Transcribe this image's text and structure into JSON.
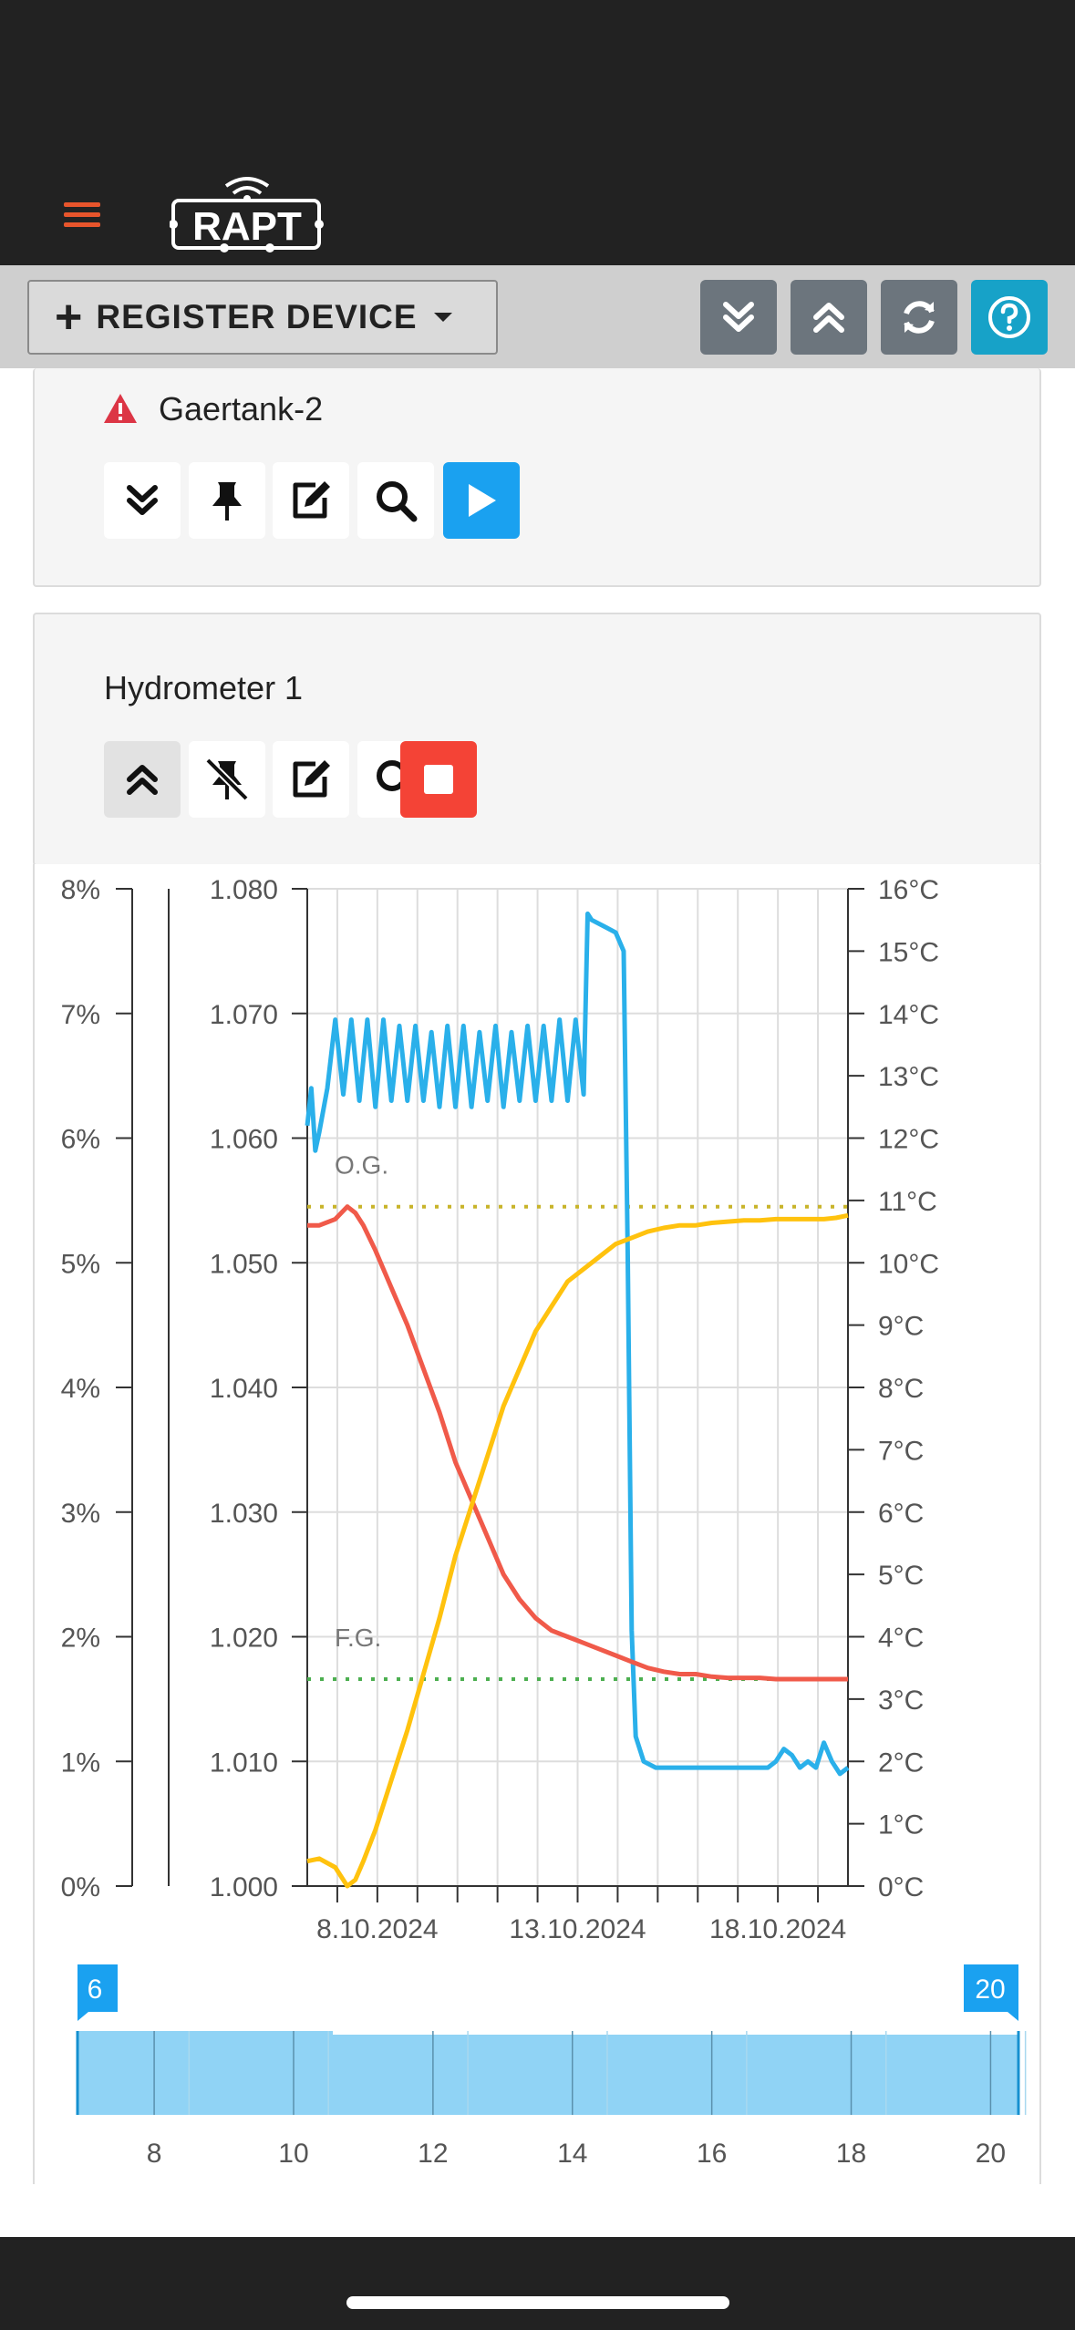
{
  "header": {
    "logo_text": "RAPT"
  },
  "toolbar": {
    "register_label": "REGISTER DEVICE"
  },
  "devices": [
    {
      "name": "Gaertank-2",
      "status": "warning"
    },
    {
      "name": "Hydrometer 1"
    }
  ],
  "chart_data": {
    "type": "line",
    "x_ticks": [
      "8.10.2024",
      "13.10.2024",
      "18.10.2024"
    ],
    "x_range_days": [
      7.1,
      20.6
    ],
    "left_axis_abv": {
      "ticks": [
        "0%",
        "1%",
        "2%",
        "3%",
        "4%",
        "5%",
        "6%",
        "7%",
        "8%"
      ],
      "range": [
        0,
        8
      ]
    },
    "left_axis_gravity": {
      "ticks": [
        "1.000",
        "1.010",
        "1.020",
        "1.030",
        "1.040",
        "1.050",
        "1.060",
        "1.070",
        "1.080"
      ],
      "range": [
        1.0,
        1.08
      ]
    },
    "right_axis_temp": {
      "ticks": [
        "0°C",
        "1°C",
        "2°C",
        "3°C",
        "4°C",
        "5°C",
        "6°C",
        "7°C",
        "8°C",
        "9°C",
        "10°C",
        "11°C",
        "12°C",
        "13°C",
        "14°C",
        "15°C",
        "16°C"
      ],
      "range": [
        0,
        16
      ]
    },
    "annotations": [
      {
        "label": "O.G.",
        "value": 1.0545,
        "axis": "gravity",
        "color": "#c8b42a"
      },
      {
        "label": "F.G.",
        "value": 1.0166,
        "axis": "gravity",
        "color": "#4caf50"
      }
    ],
    "series": [
      {
        "axis": "temp",
        "color": "#2ab0ea",
        "x": [
          7.1,
          7.2,
          7.3,
          7.4,
          7.6,
          7.8,
          8.0,
          8.2,
          8.4,
          8.6,
          8.8,
          9.0,
          9.2,
          9.4,
          9.6,
          9.8,
          10.0,
          10.2,
          10.4,
          10.6,
          10.8,
          11.0,
          11.2,
          11.4,
          11.6,
          11.8,
          12.0,
          12.2,
          12.4,
          12.6,
          12.8,
          13.0,
          13.2,
          13.4,
          13.6,
          13.8,
          14.0,
          14.1,
          14.2,
          14.5,
          14.8,
          15.0,
          15.1,
          15.2,
          15.3,
          15.5,
          15.8,
          16.2,
          16.6,
          17.0,
          17.2,
          17.4,
          17.6,
          17.8,
          18.0,
          18.2,
          18.4,
          18.6,
          18.8,
          19.0,
          19.2,
          19.4,
          19.6,
          19.8,
          20.0,
          20.2,
          20.4,
          20.6
        ],
        "y": [
          12.2,
          12.8,
          11.8,
          12.1,
          12.8,
          13.9,
          12.7,
          13.9,
          12.6,
          13.9,
          12.5,
          13.9,
          12.6,
          13.8,
          12.6,
          13.8,
          12.6,
          13.7,
          12.5,
          13.8,
          12.5,
          13.8,
          12.5,
          13.7,
          12.6,
          13.8,
          12.5,
          13.7,
          12.6,
          13.8,
          12.6,
          13.8,
          12.6,
          13.9,
          12.6,
          13.9,
          12.7,
          15.6,
          15.5,
          15.4,
          15.3,
          15.0,
          10.2,
          4.1,
          2.4,
          2.0,
          1.9,
          1.9,
          1.9,
          1.9,
          1.9,
          1.9,
          1.9,
          1.9,
          1.9,
          1.9,
          1.9,
          1.9,
          2.0,
          2.2,
          2.1,
          1.9,
          2.0,
          1.9,
          2.3,
          2.0,
          1.8,
          1.9
        ]
      },
      {
        "axis": "gravity",
        "color": "#f05a4a",
        "x": [
          7.1,
          7.4,
          7.8,
          8.1,
          8.3,
          8.5,
          8.8,
          9.2,
          9.6,
          10.0,
          10.4,
          10.8,
          11.2,
          11.6,
          12.0,
          12.4,
          12.8,
          13.2,
          13.6,
          14.0,
          14.4,
          14.8,
          15.2,
          15.6,
          16.0,
          16.4,
          16.8,
          17.2,
          17.6,
          18.0,
          18.4,
          18.8,
          19.2,
          19.6,
          20.0,
          20.3,
          20.6
        ],
        "y": [
          1.053,
          1.053,
          1.0535,
          1.0545,
          1.054,
          1.053,
          1.051,
          1.048,
          1.045,
          1.0415,
          1.038,
          1.034,
          1.031,
          1.028,
          1.025,
          1.023,
          1.0215,
          1.0205,
          1.02,
          1.0195,
          1.019,
          1.0185,
          1.018,
          1.0175,
          1.0172,
          1.017,
          1.017,
          1.0168,
          1.0167,
          1.0167,
          1.0167,
          1.0166,
          1.0166,
          1.0166,
          1.0166,
          1.0166,
          1.0166
        ]
      },
      {
        "axis": "abv",
        "color": "#ffc20e",
        "x": [
          7.1,
          7.4,
          7.8,
          8.1,
          8.3,
          8.5,
          8.8,
          9.2,
          9.6,
          10.0,
          10.4,
          10.8,
          11.2,
          11.6,
          12.0,
          12.4,
          12.8,
          13.2,
          13.6,
          14.0,
          14.4,
          14.8,
          15.2,
          15.6,
          16.0,
          16.4,
          16.8,
          17.2,
          17.6,
          18.0,
          18.4,
          18.8,
          19.2,
          19.6,
          20.0,
          20.3,
          20.6
        ],
        "y": [
          0.2,
          0.22,
          0.15,
          0.0,
          0.05,
          0.2,
          0.45,
          0.85,
          1.25,
          1.7,
          2.15,
          2.65,
          3.05,
          3.45,
          3.85,
          4.15,
          4.45,
          4.65,
          4.85,
          4.95,
          5.05,
          5.15,
          5.2,
          5.25,
          5.28,
          5.3,
          5.3,
          5.32,
          5.33,
          5.34,
          5.34,
          5.35,
          5.35,
          5.35,
          5.35,
          5.36,
          5.38
        ]
      }
    ]
  },
  "range_slider": {
    "ticks": [
      "8",
      "10",
      "12",
      "14",
      "16",
      "18",
      "20"
    ],
    "range": [
      6.9,
      20.4
    ],
    "start_value": "6",
    "end_value": "20"
  }
}
